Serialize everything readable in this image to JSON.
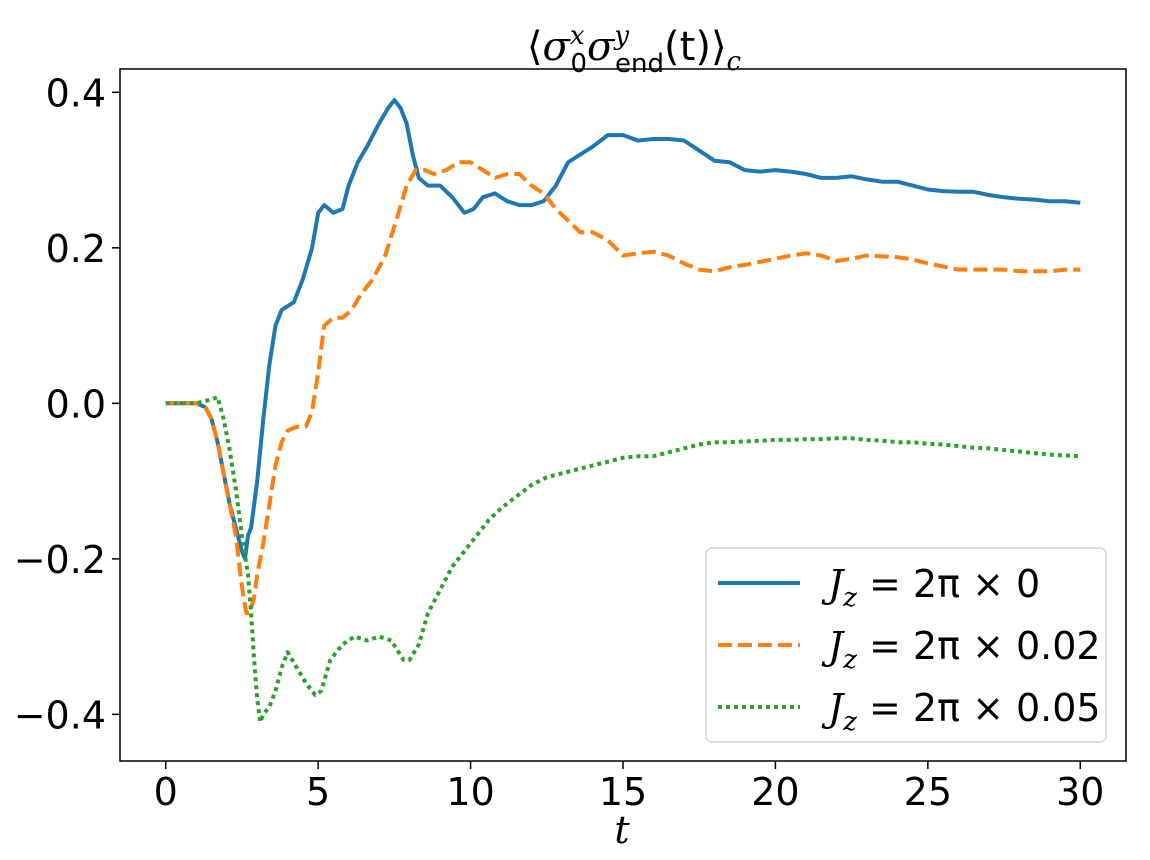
{
  "chart_data": {
    "type": "line",
    "title": "⟨σ₀ˣσᵧ_end(t)⟩_c",
    "title_parts": {
      "open": "⟨",
      "sigma": "σ",
      "sub0": "0",
      "supx": "x",
      "subend": "end",
      "supy": "y",
      "paren": "(t)",
      "close": "⟩",
      "subc": "c"
    },
    "xlabel": "t",
    "ylabel": "",
    "xlim": [
      -1.5,
      31.5
    ],
    "ylim": [
      -0.46,
      0.43
    ],
    "xticks": [
      0,
      5,
      10,
      15,
      20,
      25,
      30
    ],
    "xtick_labels": [
      "0",
      "5",
      "10",
      "15",
      "20",
      "25",
      "30"
    ],
    "yticks": [
      -0.4,
      -0.2,
      0.0,
      0.2,
      0.4
    ],
    "ytick_labels": [
      "−0.4",
      "−0.2",
      "0.0",
      "0.2",
      "0.4"
    ],
    "grid": false,
    "legend_position": "bottom-right",
    "series": [
      {
        "name": "J_z = 2π × 0",
        "legend_label": {
          "prefix": "J",
          "sub": "z",
          "rest": " = 2π × 0"
        },
        "color": "#1f77b4",
        "style": "solid",
        "x": [
          0,
          0.5,
          1,
          1.3,
          1.5,
          1.7,
          1.9,
          2.1,
          2.3,
          2.5,
          2.6,
          2.7,
          2.8,
          3.0,
          3.2,
          3.4,
          3.6,
          3.8,
          4.0,
          4.2,
          4.5,
          4.8,
          5.0,
          5.2,
          5.5,
          5.8,
          6.0,
          6.3,
          6.6,
          7.0,
          7.3,
          7.5,
          7.7,
          7.9,
          8.1,
          8.3,
          8.6,
          9.0,
          9.4,
          9.8,
          10.1,
          10.4,
          10.8,
          11.2,
          11.6,
          12.0,
          12.4,
          12.8,
          13.2,
          13.6,
          14.0,
          14.5,
          15.0,
          15.5,
          16.0,
          16.5,
          17.0,
          17.5,
          18.0,
          18.5,
          19.0,
          19.5,
          20.0,
          20.5,
          21.0,
          21.5,
          22.0,
          22.5,
          23.0,
          23.5,
          24.0,
          24.5,
          25.0,
          25.5,
          26.0,
          26.5,
          27.0,
          27.5,
          28.0,
          28.5,
          29.0,
          29.5,
          30.0
        ],
        "y": [
          0,
          0,
          0,
          -0.005,
          -0.02,
          -0.05,
          -0.09,
          -0.13,
          -0.16,
          -0.19,
          -0.2,
          -0.17,
          -0.16,
          -0.1,
          -0.02,
          0.05,
          0.1,
          0.12,
          0.125,
          0.13,
          0.16,
          0.2,
          0.245,
          0.255,
          0.245,
          0.25,
          0.28,
          0.31,
          0.33,
          0.36,
          0.38,
          0.39,
          0.38,
          0.36,
          0.32,
          0.29,
          0.28,
          0.28,
          0.265,
          0.245,
          0.25,
          0.265,
          0.27,
          0.26,
          0.255,
          0.255,
          0.26,
          0.28,
          0.31,
          0.32,
          0.33,
          0.345,
          0.345,
          0.338,
          0.34,
          0.34,
          0.338,
          0.325,
          0.312,
          0.31,
          0.3,
          0.298,
          0.3,
          0.298,
          0.295,
          0.29,
          0.29,
          0.292,
          0.288,
          0.285,
          0.285,
          0.28,
          0.275,
          0.273,
          0.272,
          0.272,
          0.268,
          0.265,
          0.263,
          0.262,
          0.26,
          0.26,
          0.258
        ]
      },
      {
        "name": "J_z = 2π × 0.02",
        "legend_label": {
          "prefix": "J",
          "sub": "z",
          "rest": " = 2π × 0.02"
        },
        "color": "#ff7f0e",
        "style": "dashed",
        "x": [
          0,
          0.5,
          1,
          1.3,
          1.5,
          1.7,
          1.9,
          2.1,
          2.3,
          2.45,
          2.55,
          2.65,
          2.75,
          2.9,
          3.0,
          3.2,
          3.4,
          3.6,
          3.8,
          4.0,
          4.3,
          4.6,
          4.8,
          5.0,
          5.2,
          5.5,
          5.8,
          6.1,
          6.4,
          6.8,
          7.2,
          7.6,
          7.9,
          8.2,
          8.5,
          8.8,
          9.2,
          9.6,
          10.0,
          10.4,
          10.8,
          11.2,
          11.6,
          12.0,
          12.4,
          12.8,
          13.2,
          13.6,
          14.0,
          14.5,
          15.0,
          15.5,
          16.0,
          16.5,
          17.0,
          17.5,
          18.0,
          18.5,
          19.0,
          19.5,
          20.0,
          20.5,
          21.0,
          21.5,
          22.0,
          22.5,
          23.0,
          23.5,
          24.0,
          24.5,
          25.0,
          25.5,
          26.0,
          26.5,
          27.0,
          27.5,
          28.0,
          28.5,
          29.0,
          29.5,
          30.0
        ],
        "y": [
          0,
          0,
          0,
          -0.005,
          -0.02,
          -0.05,
          -0.09,
          -0.13,
          -0.17,
          -0.22,
          -0.25,
          -0.27,
          -0.27,
          -0.25,
          -0.22,
          -0.18,
          -0.13,
          -0.08,
          -0.05,
          -0.035,
          -0.03,
          -0.03,
          -0.01,
          0.04,
          0.1,
          0.11,
          0.11,
          0.12,
          0.14,
          0.16,
          0.19,
          0.24,
          0.28,
          0.3,
          0.3,
          0.295,
          0.3,
          0.31,
          0.31,
          0.3,
          0.29,
          0.295,
          0.295,
          0.28,
          0.27,
          0.25,
          0.235,
          0.22,
          0.22,
          0.21,
          0.19,
          0.193,
          0.195,
          0.19,
          0.18,
          0.172,
          0.17,
          0.175,
          0.178,
          0.182,
          0.186,
          0.19,
          0.193,
          0.19,
          0.183,
          0.186,
          0.19,
          0.189,
          0.188,
          0.185,
          0.18,
          0.176,
          0.172,
          0.172,
          0.172,
          0.172,
          0.17,
          0.17,
          0.17,
          0.172,
          0.172
        ]
      },
      {
        "name": "J_z = 2π × 0.05",
        "legend_label": {
          "prefix": "J",
          "sub": "z",
          "rest": " = 2π × 0.05"
        },
        "color": "#2ca02c",
        "style": "dotted",
        "x": [
          0,
          0.5,
          1,
          1.3,
          1.5,
          1.7,
          1.9,
          2.1,
          2.3,
          2.5,
          2.7,
          2.8,
          2.9,
          3.0,
          3.1,
          3.2,
          3.4,
          3.6,
          3.8,
          4.0,
          4.3,
          4.6,
          4.9,
          5.1,
          5.4,
          5.8,
          6.2,
          6.6,
          7.0,
          7.4,
          7.8,
          8.0,
          8.3,
          8.6,
          9.0,
          9.4,
          9.8,
          10.2,
          10.6,
          11.0,
          11.5,
          12.0,
          12.5,
          13.0,
          13.5,
          14.0,
          14.5,
          15.0,
          15.5,
          16.0,
          16.5,
          17.0,
          17.5,
          18.0,
          18.5,
          19.0,
          19.5,
          20.0,
          20.5,
          21.0,
          21.5,
          22.0,
          22.5,
          23.0,
          23.5,
          24.0,
          24.5,
          25.0,
          25.5,
          26.0,
          26.5,
          27.0,
          27.5,
          28.0,
          28.5,
          29.0,
          29.5,
          30.0
        ],
        "y": [
          0,
          0,
          0,
          0.003,
          0.005,
          0.008,
          -0.02,
          -0.06,
          -0.11,
          -0.17,
          -0.22,
          -0.27,
          -0.33,
          -0.38,
          -0.41,
          -0.4,
          -0.39,
          -0.37,
          -0.34,
          -0.32,
          -0.34,
          -0.36,
          -0.375,
          -0.37,
          -0.33,
          -0.31,
          -0.3,
          -0.305,
          -0.3,
          -0.305,
          -0.33,
          -0.33,
          -0.31,
          -0.27,
          -0.24,
          -0.21,
          -0.19,
          -0.17,
          -0.15,
          -0.135,
          -0.12,
          -0.105,
          -0.095,
          -0.09,
          -0.085,
          -0.08,
          -0.075,
          -0.07,
          -0.068,
          -0.068,
          -0.063,
          -0.058,
          -0.053,
          -0.05,
          -0.05,
          -0.049,
          -0.048,
          -0.047,
          -0.047,
          -0.046,
          -0.046,
          -0.045,
          -0.045,
          -0.047,
          -0.048,
          -0.05,
          -0.05,
          -0.052,
          -0.053,
          -0.055,
          -0.057,
          -0.058,
          -0.06,
          -0.062,
          -0.064,
          -0.066,
          -0.067,
          -0.068
        ]
      }
    ]
  }
}
